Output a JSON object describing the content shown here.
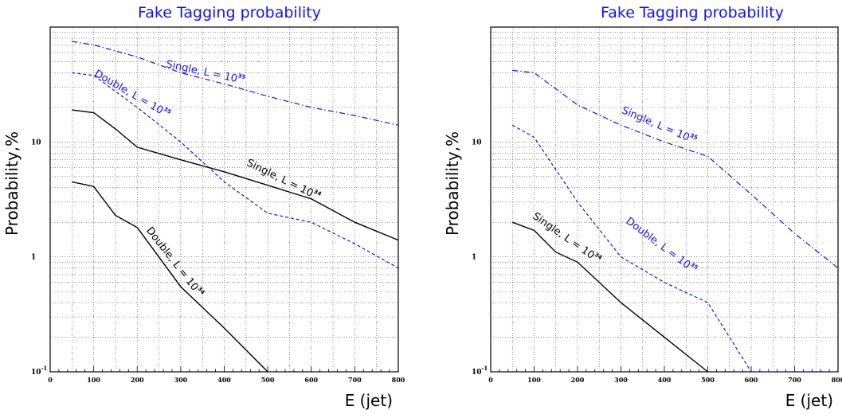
{
  "chart_data": [
    {
      "type": "line",
      "title": "Fake Tagging probability",
      "xlabel": "E (jet)",
      "ylabel": "Probability,%",
      "xlim": [
        0,
        800
      ],
      "ylim": [
        0.1,
        100
      ],
      "yscale": "log",
      "grid": true,
      "xticks": [
        "0",
        "100",
        "200",
        "300",
        "400",
        "500",
        "600",
        "700",
        "800"
      ],
      "yticks": [
        {
          "value": 10,
          "label": "10"
        },
        {
          "value": 1,
          "label": "1"
        },
        {
          "value": 0.1,
          "base": "10",
          "exp": "-1"
        }
      ],
      "series": [
        {
          "x": [
            50,
            100,
            200,
            300,
            400,
            500,
            600,
            700,
            800
          ],
          "y": [
            75,
            70,
            55,
            40,
            32,
            25,
            20,
            17,
            14
          ],
          "color": "#1010ff",
          "dash": "dashdot"
        },
        {
          "x": [
            50,
            100,
            200,
            300,
            400,
            500,
            600,
            700,
            800
          ],
          "y": [
            40,
            38,
            20,
            10,
            4.5,
            2.4,
            2.0,
            1.3,
            0.8
          ],
          "color": "#1010ff",
          "dash": "dashed"
        },
        {
          "x": [
            50,
            100,
            150,
            200,
            300,
            400,
            500,
            600,
            700,
            800
          ],
          "y": [
            19,
            18,
            13,
            9,
            7,
            5.5,
            4.2,
            3.2,
            2.0,
            1.4
          ],
          "color": "#000000",
          "dash": "solid"
        },
        {
          "x": [
            50,
            100,
            150,
            200,
            300,
            400,
            500
          ],
          "y": [
            4.5,
            4.1,
            2.3,
            1.8,
            0.55,
            0.24,
            0.1
          ],
          "color": "#000000",
          "dash": "solid"
        }
      ],
      "annotations": [
        {
          "text": "Single, L = 10",
          "exp": "35",
          "x": 265,
          "y": 45,
          "angle": 12,
          "color": "#1010ff"
        },
        {
          "text": "Double, L = 10",
          "exp": "35",
          "x": 100,
          "y": 38,
          "angle": 30,
          "color": "#1010ff"
        },
        {
          "text": "Single, L = 10",
          "exp": "34",
          "x": 450,
          "y": 6.3,
          "angle": 26,
          "color": "#000000"
        },
        {
          "text": "Double, L = 10",
          "exp": "34",
          "x": 220,
          "y": 1.7,
          "angle": 52,
          "color": "#000000"
        }
      ]
    },
    {
      "type": "line",
      "title": "Fake Tagging probability",
      "xlabel": "E (jet)",
      "ylabel": "Probability,%",
      "xlim": [
        0,
        800
      ],
      "ylim": [
        0.1,
        100
      ],
      "yscale": "log",
      "grid": true,
      "xticks": [
        "0",
        "100",
        "200",
        "300",
        "400",
        "500",
        "600",
        "700",
        "800"
      ],
      "yticks": [
        {
          "value": 10,
          "label": "10"
        },
        {
          "value": 1,
          "label": "1"
        },
        {
          "value": 0.1,
          "base": "10",
          "exp": "-1"
        }
      ],
      "series": [
        {
          "x": [
            50,
            100,
            200,
            300,
            400,
            500,
            600,
            700,
            800
          ],
          "y": [
            42,
            40,
            21,
            14,
            10,
            7.5,
            3.5,
            1.6,
            0.8
          ],
          "color": "#1010ff",
          "dash": "dashdot"
        },
        {
          "x": [
            50,
            100,
            200,
            300,
            400,
            500,
            600,
            700,
            800
          ],
          "y": [
            14,
            11,
            3.0,
            1.0,
            0.6,
            0.4,
            0.1,
            0.1,
            0.1
          ],
          "color": "#1010ff",
          "dash": "dashed"
        },
        {
          "x": [
            50,
            100,
            150,
            200,
            300,
            400,
            500
          ],
          "y": [
            2.0,
            1.7,
            1.1,
            0.9,
            0.4,
            0.2,
            0.1
          ],
          "color": "#000000",
          "dash": "solid"
        }
      ],
      "annotations": [
        {
          "text": "Single, L = 10",
          "exp": "35",
          "x": 300,
          "y": 18,
          "angle": 23,
          "color": "#1010ff"
        },
        {
          "text": "Double, L = 10",
          "exp": "35",
          "x": 310,
          "y": 2.0,
          "angle": 37,
          "color": "#1010ff"
        },
        {
          "text": "Single, L = 10",
          "exp": "34",
          "x": 95,
          "y": 2.2,
          "angle": 35,
          "color": "#000000"
        }
      ]
    }
  ]
}
